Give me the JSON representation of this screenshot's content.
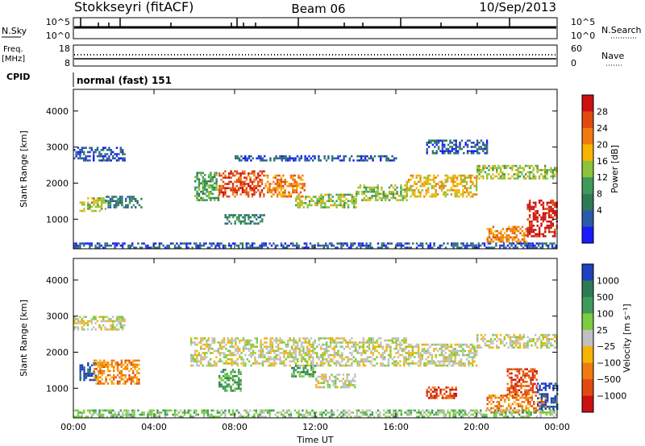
{
  "header": {
    "station": "Stokkseyri (fitACF)",
    "beam": "Beam 06",
    "date": "10/Sep/2013"
  },
  "status_panels": {
    "nsky": {
      "label": "N.Sky",
      "left_ticks": [
        "10^5",
        "10^0"
      ],
      "right_ticks": [
        "10^5",
        "10^0"
      ],
      "right_label": "N.Search"
    },
    "freq": {
      "label_line1": "Freq.",
      "label_line2": "[MHz]",
      "left_ticks": [
        "18",
        "8"
      ],
      "right_ticks": [
        "60",
        "0"
      ],
      "right_label": "Nave"
    },
    "cpid": {
      "label": "CPID",
      "value": "normal (fast) 151"
    }
  },
  "chart_data": [
    {
      "type": "heatmap",
      "name": "power",
      "ylabel": "Slant Range [km]",
      "ylim": [
        180,
        4600
      ],
      "yticks": [
        "1000",
        "2000",
        "3000",
        "4000"
      ],
      "xlim": [
        0,
        24
      ],
      "xticks": [
        "00:00",
        "04:00",
        "08:00",
        "12:00",
        "16:00",
        "20:00",
        "00:00"
      ],
      "colorbar_label": "Power [dB]",
      "colorbar_ticks": [
        "4",
        "8",
        "12",
        "16",
        "20",
        "24",
        "28"
      ],
      "colors": [
        "#1a1aff",
        "#2a5aa8",
        "#2f7a55",
        "#3d9a5a",
        "#8bc33a",
        "#f5b400",
        "#f07a10",
        "#e04a10",
        "#cc1010"
      ],
      "regions": [
        {
          "t0": 0.0,
          "t1": 2.5,
          "r0": 2600,
          "r1": 2950,
          "level": 1
        },
        {
          "t0": 0.3,
          "t1": 1.6,
          "r0": 1200,
          "r1": 1600,
          "level": 4
        },
        {
          "t0": 1.6,
          "t1": 3.4,
          "r0": 1300,
          "r1": 1600,
          "level": 2
        },
        {
          "t0": 6.0,
          "t1": 7.2,
          "r0": 1500,
          "r1": 2300,
          "level": 3
        },
        {
          "t0": 7.2,
          "t1": 9.5,
          "r0": 1600,
          "r1": 2300,
          "level": 7
        },
        {
          "t0": 9.5,
          "t1": 11.5,
          "r0": 1600,
          "r1": 2200,
          "level": 6
        },
        {
          "t0": 11.0,
          "t1": 14.0,
          "r0": 1300,
          "r1": 1700,
          "level": 4
        },
        {
          "t0": 14.0,
          "t1": 16.5,
          "r0": 1500,
          "r1": 1950,
          "level": 4
        },
        {
          "t0": 16.5,
          "t1": 20.0,
          "r0": 1600,
          "r1": 2200,
          "level": 5
        },
        {
          "t0": 20.0,
          "t1": 24.0,
          "r0": 2100,
          "r1": 2500,
          "level": 4
        },
        {
          "t0": 20.5,
          "t1": 22.5,
          "r0": 350,
          "r1": 800,
          "level": 6
        },
        {
          "t0": 22.5,
          "t1": 24.0,
          "r0": 500,
          "r1": 1500,
          "level": 8
        },
        {
          "t0": 7.5,
          "t1": 9.5,
          "r0": 850,
          "r1": 1100,
          "level": 2
        },
        {
          "t0": 0.0,
          "t1": 24.0,
          "r0": 180,
          "r1": 320,
          "level": 1
        },
        {
          "t0": 8.0,
          "t1": 16.0,
          "r0": 2600,
          "r1": 2750,
          "level": 1
        },
        {
          "t0": 17.5,
          "t1": 20.5,
          "r0": 2800,
          "r1": 3200,
          "level": 1
        }
      ]
    },
    {
      "type": "heatmap",
      "name": "velocity",
      "ylabel": "Slant Range [km]",
      "ylim": [
        180,
        4600
      ],
      "yticks": [
        "1000",
        "2000",
        "3000",
        "4000"
      ],
      "xlim": [
        0,
        24
      ],
      "xticks": [
        "00:00",
        "04:00",
        "08:00",
        "12:00",
        "16:00",
        "20:00",
        "00:00"
      ],
      "xlabel": "Time UT",
      "colorbar_label": "Velocity [m s⁻¹]",
      "colorbar_ticks": [
        "1000",
        "500",
        "100",
        "25",
        "−25",
        "−100",
        "−500",
        "−1000"
      ],
      "colors": [
        "#2040c0",
        "#2f7a55",
        "#3d9a5a",
        "#7acc40",
        "#c0c0c0",
        "#f5b400",
        "#f07a10",
        "#e04a10",
        "#cc1010"
      ],
      "regions": [
        {
          "t0": 0.0,
          "t1": 2.5,
          "r0": 2600,
          "r1": 2950,
          "level": 4
        },
        {
          "t0": 0.3,
          "t1": 1.1,
          "r0": 1200,
          "r1": 1700,
          "level": 0
        },
        {
          "t0": 1.0,
          "t1": 3.3,
          "r0": 1100,
          "r1": 1750,
          "level": 6
        },
        {
          "t0": 5.8,
          "t1": 16.5,
          "r0": 1600,
          "r1": 2400,
          "level": 4
        },
        {
          "t0": 16.5,
          "t1": 20.0,
          "r0": 1600,
          "r1": 2200,
          "level": 4
        },
        {
          "t0": 20.0,
          "t1": 24.0,
          "r0": 2100,
          "r1": 2500,
          "level": 4
        },
        {
          "t0": 7.2,
          "t1": 8.3,
          "r0": 900,
          "r1": 1500,
          "level": 2
        },
        {
          "t0": 10.8,
          "t1": 12.0,
          "r0": 1300,
          "r1": 1600,
          "level": 2
        },
        {
          "t0": 12.0,
          "t1": 14.0,
          "r0": 1000,
          "r1": 1400,
          "level": 4
        },
        {
          "t0": 20.5,
          "t1": 23.5,
          "r0": 300,
          "r1": 800,
          "level": 6
        },
        {
          "t0": 21.5,
          "t1": 23.0,
          "r0": 800,
          "r1": 1500,
          "level": 7
        },
        {
          "t0": 0.0,
          "t1": 24.0,
          "r0": 180,
          "r1": 400,
          "level": 3
        },
        {
          "t0": 17.5,
          "t1": 19.0,
          "r0": 700,
          "r1": 1000,
          "level": 7
        },
        {
          "t0": 23.0,
          "t1": 24.0,
          "r0": 400,
          "r1": 1100,
          "level": 0
        }
      ]
    }
  ]
}
